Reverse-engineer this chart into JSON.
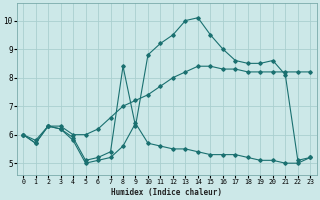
{
  "xlabel": "Humidex (Indice chaleur)",
  "bg_color": "#cce8e8",
  "line_color": "#1a7070",
  "grid_color": "#aacfcf",
  "xlim": [
    -0.5,
    23.5
  ],
  "ylim": [
    4.6,
    10.6
  ],
  "xticks": [
    0,
    1,
    2,
    3,
    4,
    5,
    6,
    7,
    8,
    9,
    10,
    11,
    12,
    13,
    14,
    15,
    16,
    17,
    18,
    19,
    20,
    21,
    22,
    23
  ],
  "yticks": [
    5,
    6,
    7,
    8,
    9,
    10
  ],
  "line1_x": [
    0,
    1,
    2,
    3,
    4,
    5,
    6,
    7,
    8,
    9,
    10,
    11,
    12,
    13,
    14,
    15,
    16,
    17,
    18,
    19,
    20,
    21,
    22,
    23
  ],
  "line1_y": [
    6.0,
    5.7,
    6.3,
    6.2,
    5.8,
    5.0,
    5.1,
    5.2,
    5.6,
    6.4,
    5.7,
    5.6,
    5.5,
    5.5,
    5.4,
    5.3,
    5.3,
    5.3,
    5.2,
    5.1,
    5.1,
    5.0,
    5.0,
    5.2
  ],
  "line2_x": [
    0,
    1,
    2,
    3,
    4,
    5,
    6,
    7,
    8,
    9,
    10,
    11,
    12,
    13,
    14,
    15,
    16,
    17,
    18,
    19,
    20,
    21,
    22,
    23
  ],
  "line2_y": [
    6.0,
    5.8,
    6.3,
    6.3,
    6.0,
    6.0,
    6.2,
    6.6,
    7.0,
    7.2,
    7.4,
    7.7,
    8.0,
    8.2,
    8.4,
    8.4,
    8.3,
    8.3,
    8.2,
    8.2,
    8.2,
    8.2,
    8.2,
    8.2
  ],
  "line3_x": [
    0,
    1,
    2,
    3,
    4,
    5,
    6,
    7,
    8,
    9,
    10,
    11,
    12,
    13,
    14,
    15,
    16,
    17,
    18,
    19,
    20,
    21,
    22,
    23
  ],
  "line3_y": [
    6.0,
    5.7,
    6.3,
    6.2,
    5.9,
    5.1,
    5.2,
    5.4,
    8.4,
    6.3,
    8.8,
    9.2,
    9.5,
    10.0,
    10.1,
    9.5,
    9.0,
    8.6,
    8.5,
    8.5,
    8.6,
    8.1,
    5.1,
    5.2
  ]
}
